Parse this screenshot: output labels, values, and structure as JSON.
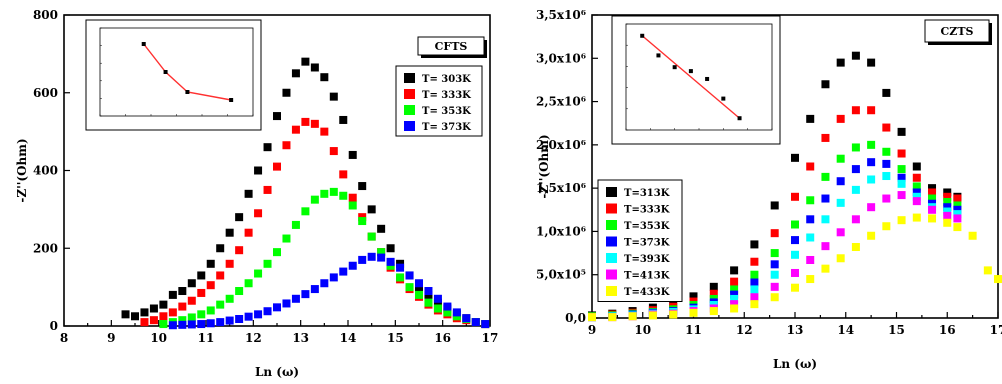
{
  "chart_data": [
    {
      "type": "scatter",
      "tag": "CFTS",
      "xlabel": "Ln (ω)",
      "ylabel": "-Z''(Ohm)",
      "xlim": [
        8,
        17
      ],
      "ylim": [
        0,
        800
      ],
      "xticks": [
        "8",
        "9",
        "10",
        "11",
        "12",
        "13",
        "14",
        "15",
        "16",
        "17"
      ],
      "yticks": [
        "0",
        "200",
        "400",
        "600",
        "800"
      ],
      "series": [
        {
          "name": "T= 303K",
          "color": "#000000",
          "x": [
            9.3,
            9.5,
            9.7,
            9.9,
            10.1,
            10.3,
            10.5,
            10.7,
            10.9,
            11.1,
            11.3,
            11.5,
            11.7,
            11.9,
            12.1,
            12.3,
            12.5,
            12.7,
            12.9,
            13.1,
            13.3,
            13.5,
            13.7,
            13.9,
            14.1,
            14.3,
            14.5,
            14.7,
            14.9,
            15.1,
            15.3,
            15.5,
            15.7,
            15.9,
            16.1,
            16.3,
            16.5,
            16.7,
            16.9
          ],
          "y": [
            30,
            25,
            35,
            45,
            55,
            80,
            90,
            110,
            130,
            160,
            200,
            240,
            280,
            340,
            400,
            460,
            540,
            600,
            650,
            680,
            665,
            640,
            590,
            530,
            440,
            360,
            300,
            250,
            200,
            160,
            130,
            100,
            80,
            60,
            45,
            30,
            20,
            10,
            5
          ]
        },
        {
          "name": "T= 333K",
          "color": "#ff0000",
          "x": [
            9.7,
            9.9,
            10.1,
            10.3,
            10.5,
            10.7,
            10.9,
            11.1,
            11.3,
            11.5,
            11.7,
            11.9,
            12.1,
            12.3,
            12.5,
            12.7,
            12.9,
            13.1,
            13.3,
            13.5,
            13.7,
            13.9,
            14.1,
            14.3,
            14.5,
            14.7,
            14.9,
            15.1,
            15.3,
            15.5,
            15.7,
            15.9,
            16.1,
            16.3,
            16.5,
            16.7,
            16.9
          ],
          "y": [
            10,
            15,
            25,
            35,
            50,
            65,
            85,
            105,
            130,
            160,
            195,
            240,
            290,
            350,
            410,
            465,
            505,
            525,
            520,
            500,
            450,
            390,
            330,
            280,
            230,
            190,
            150,
            120,
            95,
            75,
            55,
            40,
            30,
            20,
            15,
            10,
            5
          ]
        },
        {
          "name": "T= 353K",
          "color": "#00ff00",
          "x": [
            10.1,
            10.3,
            10.5,
            10.7,
            10.9,
            11.1,
            11.3,
            11.5,
            11.7,
            11.9,
            12.1,
            12.3,
            12.5,
            12.7,
            12.9,
            13.1,
            13.3,
            13.5,
            13.7,
            13.9,
            14.1,
            14.3,
            14.5,
            14.7,
            14.9,
            15.1,
            15.3,
            15.5,
            15.7,
            15.9,
            16.1,
            16.3,
            16.5,
            16.7,
            16.9
          ],
          "y": [
            5,
            10,
            15,
            22,
            30,
            40,
            55,
            70,
            90,
            110,
            135,
            160,
            190,
            225,
            260,
            295,
            325,
            340,
            345,
            335,
            310,
            270,
            230,
            190,
            155,
            125,
            100,
            80,
            60,
            45,
            35,
            25,
            18,
            10,
            5
          ]
        },
        {
          "name": "T= 373K",
          "color": "#0000ff",
          "x": [
            10.3,
            10.5,
            10.7,
            10.9,
            11.1,
            11.3,
            11.5,
            11.7,
            11.9,
            12.1,
            12.3,
            12.5,
            12.7,
            12.9,
            13.1,
            13.3,
            13.5,
            13.7,
            13.9,
            14.1,
            14.3,
            14.5,
            14.7,
            14.9,
            15.1,
            15.3,
            15.5,
            15.7,
            15.9,
            16.1,
            16.3,
            16.5,
            16.7,
            16.9
          ],
          "y": [
            2,
            3,
            4,
            5,
            7,
            10,
            14,
            18,
            24,
            30,
            38,
            48,
            58,
            70,
            82,
            95,
            110,
            125,
            140,
            155,
            170,
            178,
            176,
            165,
            150,
            130,
            110,
            90,
            70,
            50,
            35,
            20,
            10,
            5
          ]
        }
      ],
      "inset": {
        "points": [
          [
            1.4,
            14.8
          ],
          [
            1.45,
            14.45
          ],
          [
            1.5,
            14.2
          ],
          [
            1.6,
            14.1
          ]
        ],
        "xlim": [
          1.3,
          1.65
        ],
        "ylim": [
          13.9,
          15.0
        ]
      }
    },
    {
      "type": "scatter",
      "tag": "CZTS",
      "xlabel": "Ln (ω)",
      "ylabel": "-Z''(Ohm)",
      "xlim": [
        9,
        17
      ],
      "ylim": [
        0,
        3.5
      ],
      "xticks": [
        "9",
        "10",
        "11",
        "12",
        "13",
        "14",
        "15",
        "16",
        "17"
      ],
      "yticks": [
        "0,0",
        "5,0x10⁵",
        "1,0x10⁶",
        "1,5x10⁶",
        "2,0x10⁶",
        "2,5x10⁶",
        "3,0x10⁶",
        "3,5x10⁶"
      ],
      "series": [
        {
          "name": "T=313K",
          "color": "#000000",
          "x": [
            9,
            9.4,
            9.8,
            10.2,
            10.6,
            11,
            11.4,
            11.8,
            12.2,
            12.6,
            13,
            13.3,
            13.6,
            13.9,
            14.2,
            14.5,
            14.8,
            15.1,
            15.4,
            15.7,
            16,
            16.2
          ],
          "y": [
            0.03,
            0.05,
            0.08,
            0.12,
            0.17,
            0.25,
            0.36,
            0.55,
            0.85,
            1.3,
            1.85,
            2.3,
            2.7,
            2.95,
            3.03,
            2.95,
            2.6,
            2.15,
            1.75,
            1.5,
            1.45,
            1.4
          ]
        },
        {
          "name": "T=333K",
          "color": "#ff0000",
          "x": [
            9,
            9.4,
            9.8,
            10.2,
            10.6,
            11,
            11.4,
            11.8,
            12.2,
            12.6,
            13,
            13.3,
            13.6,
            13.9,
            14.2,
            14.5,
            14.8,
            15.1,
            15.4,
            15.7,
            16,
            16.2
          ],
          "y": [
            0.02,
            0.04,
            0.06,
            0.09,
            0.13,
            0.19,
            0.28,
            0.42,
            0.65,
            0.98,
            1.4,
            1.75,
            2.08,
            2.3,
            2.4,
            2.4,
            2.2,
            1.9,
            1.62,
            1.45,
            1.4,
            1.38
          ]
        },
        {
          "name": "T=353K",
          "color": "#00ff00",
          "x": [
            9,
            9.4,
            9.8,
            10.2,
            10.6,
            11,
            11.4,
            11.8,
            12.2,
            12.6,
            13,
            13.3,
            13.6,
            13.9,
            14.2,
            14.5,
            14.8,
            15.1,
            15.4,
            15.7,
            16,
            16.2
          ],
          "y": [
            0.02,
            0.03,
            0.05,
            0.07,
            0.1,
            0.15,
            0.22,
            0.33,
            0.5,
            0.75,
            1.08,
            1.36,
            1.63,
            1.84,
            1.97,
            2.0,
            1.92,
            1.72,
            1.52,
            1.38,
            1.34,
            1.3
          ]
        },
        {
          "name": "T=373K",
          "color": "#0000ff",
          "x": [
            9,
            9.4,
            9.8,
            10.2,
            10.6,
            11,
            11.4,
            11.8,
            12.2,
            12.6,
            13,
            13.3,
            13.6,
            13.9,
            14.2,
            14.5,
            14.8,
            15.1,
            15.4,
            15.7,
            16,
            16.2
          ],
          "y": [
            0.01,
            0.02,
            0.04,
            0.06,
            0.08,
            0.12,
            0.18,
            0.27,
            0.41,
            0.62,
            0.9,
            1.14,
            1.38,
            1.58,
            1.72,
            1.8,
            1.78,
            1.62,
            1.45,
            1.32,
            1.28,
            1.25
          ]
        },
        {
          "name": "T=393K",
          "color": "#00ffff",
          "x": [
            9,
            9.4,
            9.8,
            10.2,
            10.6,
            11,
            11.4,
            11.8,
            12.2,
            12.6,
            13,
            13.3,
            13.6,
            13.9,
            14.2,
            14.5,
            14.8,
            15.1,
            15.4,
            15.7,
            16,
            16.2
          ],
          "y": [
            0.01,
            0.02,
            0.03,
            0.05,
            0.07,
            0.1,
            0.15,
            0.22,
            0.33,
            0.5,
            0.73,
            0.93,
            1.14,
            1.33,
            1.48,
            1.6,
            1.64,
            1.55,
            1.4,
            1.28,
            1.23,
            1.2
          ]
        },
        {
          "name": "T=413K",
          "color": "#ff00ff",
          "x": [
            9,
            9.4,
            9.8,
            10.2,
            10.6,
            11,
            11.4,
            11.8,
            12.2,
            12.6,
            13,
            13.3,
            13.6,
            13.9,
            14.2,
            14.5,
            14.8,
            15.1,
            15.4,
            15.7,
            16,
            16.2
          ],
          "y": [
            0.01,
            0.01,
            0.02,
            0.04,
            0.05,
            0.08,
            0.11,
            0.16,
            0.24,
            0.36,
            0.52,
            0.67,
            0.83,
            0.99,
            1.14,
            1.28,
            1.38,
            1.42,
            1.35,
            1.25,
            1.18,
            1.15
          ]
        },
        {
          "name": "T=433K",
          "color": "#ffff00",
          "x": [
            9,
            9.4,
            9.8,
            10.2,
            10.6,
            11,
            11.4,
            11.8,
            12.2,
            12.6,
            13,
            13.3,
            13.6,
            13.9,
            14.2,
            14.5,
            14.8,
            15.1,
            15.4,
            15.7,
            16,
            16.2,
            16.5,
            16.8,
            17
          ],
          "y": [
            0.01,
            0.01,
            0.02,
            0.03,
            0.04,
            0.06,
            0.08,
            0.11,
            0.16,
            0.24,
            0.35,
            0.45,
            0.57,
            0.69,
            0.82,
            0.95,
            1.06,
            1.13,
            1.16,
            1.15,
            1.1,
            1.05,
            0.95,
            0.55,
            0.45
          ]
        }
      ],
      "inset": {
        "points": [
          [
            2.0,
            3.4
          ],
          [
            2.2,
            2.9
          ],
          [
            2.4,
            2.6
          ],
          [
            2.6,
            2.5
          ],
          [
            2.8,
            2.3
          ],
          [
            3.0,
            1.8
          ],
          [
            3.2,
            1.3
          ]
        ],
        "xlim": [
          1.8,
          3.6
        ],
        "ylim": [
          1.0,
          3.7
        ]
      }
    }
  ]
}
